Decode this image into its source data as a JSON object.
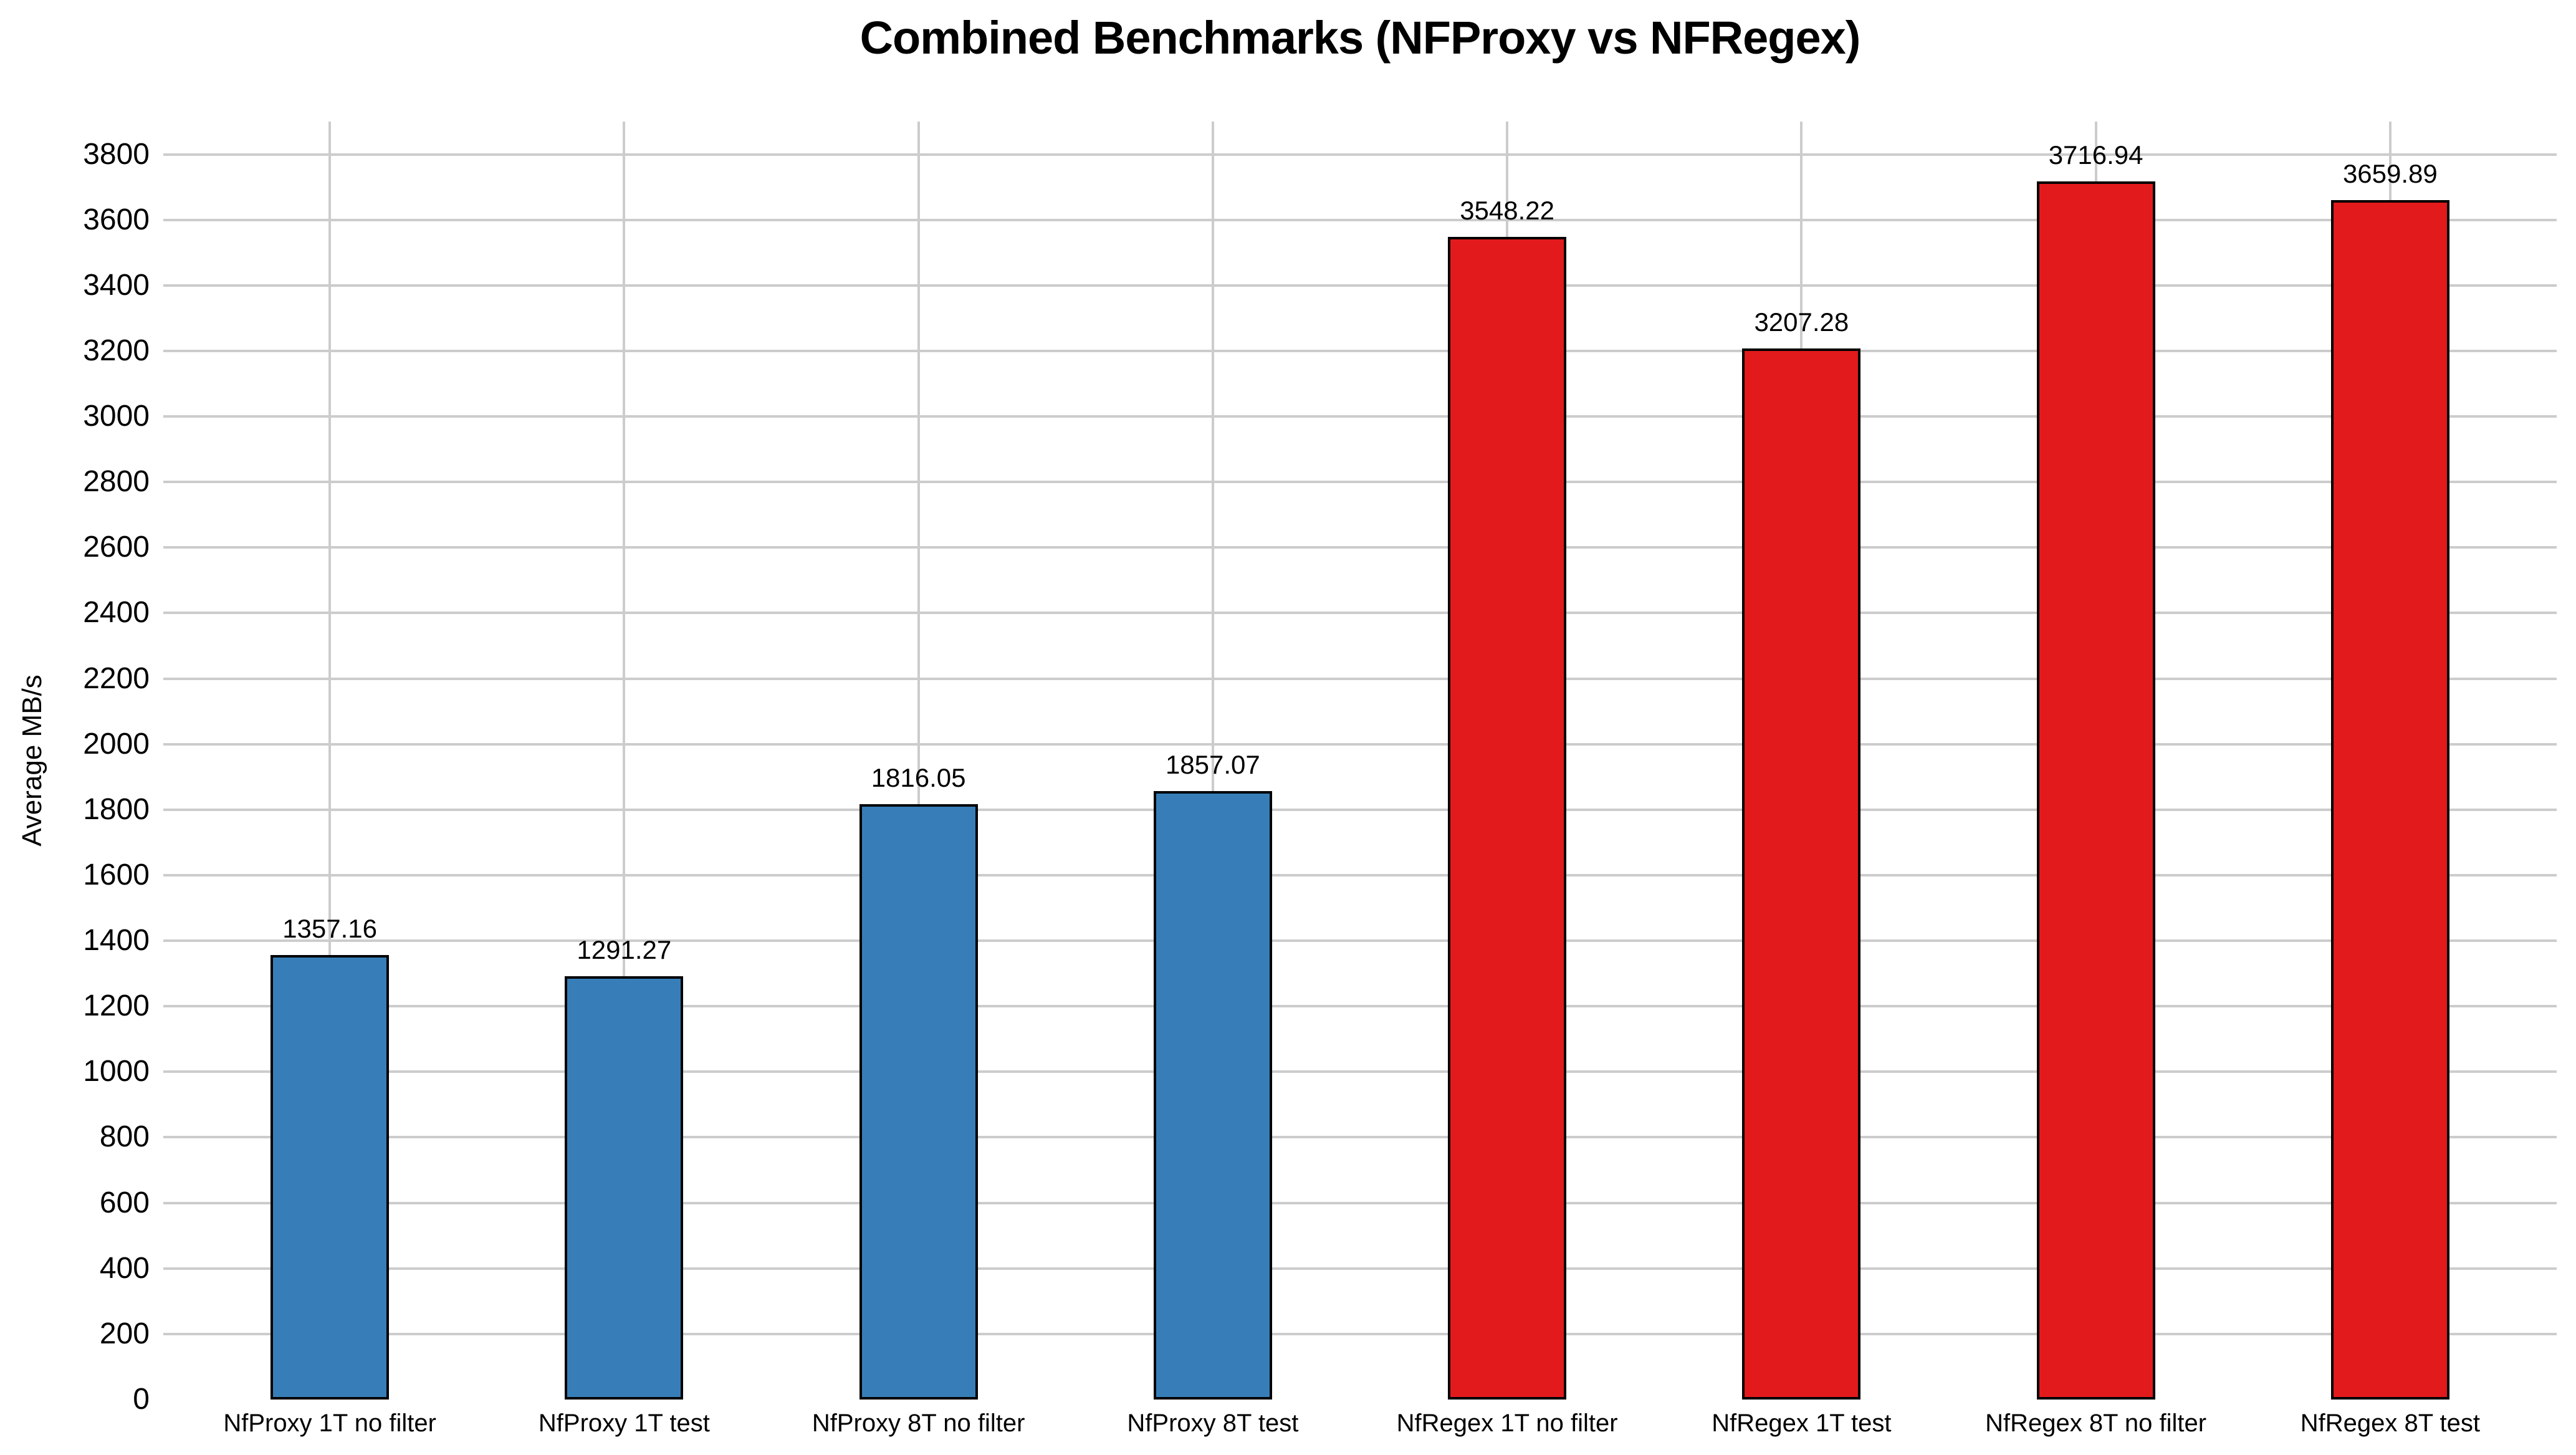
{
  "figure": {
    "title": "Combined Benchmarks (NFProxy vs NFRegex)"
  },
  "chart_data": {
    "type": "bar",
    "title": "Combined Benchmarks (NFProxy vs NFRegex)",
    "xlabel": "",
    "ylabel": "Average MB/s",
    "categories": [
      "NfProxy 1T no filter",
      "NfProxy 1T test",
      "NfProxy 8T no filter",
      "NfProxy 8T test",
      "NfRegex 1T no filter",
      "NfRegex 1T test",
      "NfRegex 8T no filter",
      "NfRegex 8T test"
    ],
    "values": [
      1357.16,
      1291.27,
      1816.05,
      1857.07,
      3548.22,
      3207.28,
      3716.94,
      3659.89
    ],
    "bar_value_labels": [
      "1357.16",
      "1291.27",
      "1816.05",
      "1857.07",
      "3548.22",
      "3207.28",
      "3716.94",
      "3659.89"
    ],
    "bar_colors": [
      "#377eb8",
      "#377eb8",
      "#377eb8",
      "#377eb8",
      "#e21a1c",
      "#e21a1c",
      "#e21a1c",
      "#e21a1c"
    ],
    "bar_edge_color": "#000000",
    "grid": true,
    "grid_color": "#cccccc",
    "legend_position": "none",
    "ylim": [
      0,
      3900
    ],
    "yticks": [
      0,
      200,
      400,
      600,
      800,
      1000,
      1200,
      1400,
      1600,
      1800,
      2000,
      2200,
      2400,
      2600,
      2800,
      3000,
      3200,
      3400,
      3600,
      3800
    ]
  }
}
